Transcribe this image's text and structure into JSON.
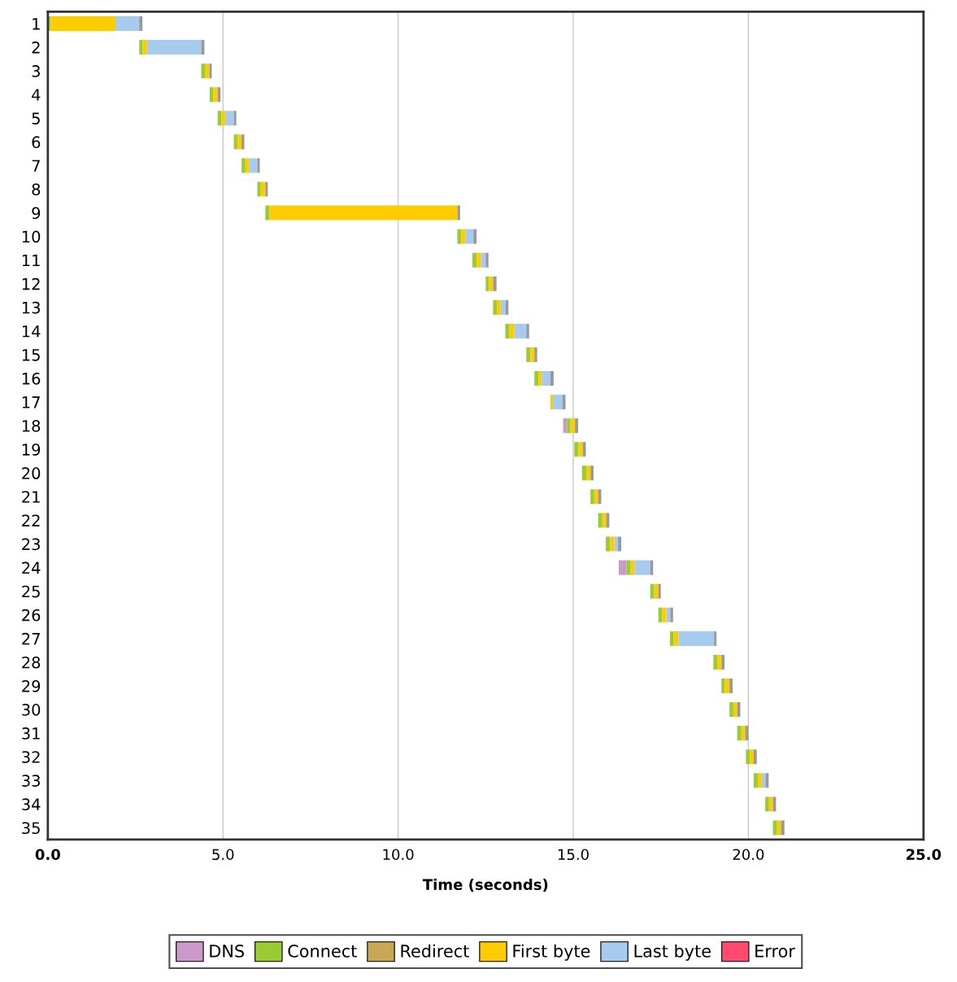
{
  "chart_data": {
    "type": "bar",
    "orientation": "horizontal",
    "xlabel": "Time (seconds)",
    "categories": [
      "1",
      "2",
      "3",
      "4",
      "5",
      "6",
      "7",
      "8",
      "9",
      "10",
      "11",
      "12",
      "13",
      "14",
      "15",
      "16",
      "17",
      "18",
      "19",
      "20",
      "21",
      "22",
      "23",
      "24",
      "25",
      "26",
      "27",
      "28",
      "29",
      "30",
      "31",
      "32",
      "33",
      "34",
      "35"
    ],
    "series": [
      {
        "name": "DNS",
        "color": "#cc99cc",
        "values": [
          null,
          null,
          null,
          null,
          null,
          null,
          null,
          null,
          null,
          null,
          null,
          null,
          null,
          null,
          null,
          null,
          null,
          0.11,
          null,
          null,
          null,
          null,
          null,
          0.22,
          null,
          null,
          null,
          null,
          null,
          null,
          null,
          null,
          null,
          null,
          null
        ],
        "base": [
          null,
          null,
          null,
          null,
          null,
          null,
          null,
          null,
          null,
          null,
          null,
          null,
          null,
          null,
          null,
          null,
          null,
          14.71,
          null,
          null,
          null,
          null,
          null,
          16.3,
          null,
          null,
          null,
          null,
          null,
          null,
          null,
          null,
          null,
          null,
          null
        ]
      },
      {
        "name": "Connect",
        "color": "#99cc33",
        "values": [
          0.08,
          0.09,
          0.12,
          0.11,
          0.11,
          0.1,
          0.11,
          0.1,
          0.12,
          0.11,
          0.12,
          0.09,
          0.11,
          0.12,
          0.12,
          0.12,
          null,
          0.1,
          0.12,
          0.12,
          0.11,
          0.12,
          0.12,
          0.12,
          0.11,
          0.11,
          0.11,
          0.11,
          0.1,
          0.11,
          0.12,
          0.11,
          0.12,
          0.11,
          0.12
        ],
        "base": [
          0.0,
          2.61,
          4.38,
          4.62,
          4.85,
          5.31,
          5.53,
          5.98,
          6.21,
          11.69,
          12.12,
          12.5,
          12.71,
          13.06,
          13.66,
          13.89,
          null,
          14.82,
          15.03,
          15.25,
          15.49,
          15.71,
          15.93,
          16.52,
          17.2,
          17.43,
          17.76,
          19.0,
          19.23,
          19.46,
          19.68,
          19.93,
          20.15,
          20.48,
          20.7
        ]
      },
      {
        "name": "Redirect",
        "color": "#c8a856",
        "values": [
          null,
          null,
          null,
          null,
          null,
          null,
          null,
          null,
          null,
          null,
          null,
          null,
          null,
          null,
          null,
          null,
          null,
          null,
          null,
          null,
          null,
          null,
          null,
          null,
          null,
          null,
          null,
          null,
          null,
          null,
          null,
          null,
          null,
          null,
          null
        ]
      },
      {
        "name": "First byte",
        "color": "#ffcc00",
        "values": [
          1.85,
          0.13,
          0.11,
          0.12,
          0.11,
          0.12,
          0.1,
          0.13,
          5.36,
          0.12,
          0.12,
          0.12,
          0.11,
          0.14,
          0.11,
          0.09,
          0.07,
          0.13,
          0.12,
          0.12,
          0.11,
          0.11,
          0.12,
          0.11,
          0.12,
          0.12,
          0.13,
          0.12,
          0.13,
          0.11,
          0.11,
          0.11,
          0.11,
          0.11,
          0.11
        ],
        "base": [
          0.08,
          2.7,
          4.5,
          4.73,
          4.96,
          5.41,
          5.64,
          6.08,
          6.33,
          11.8,
          12.24,
          12.59,
          12.82,
          13.18,
          13.78,
          14.01,
          14.35,
          14.92,
          15.15,
          15.37,
          15.6,
          15.83,
          16.05,
          16.64,
          17.31,
          17.54,
          17.87,
          19.11,
          19.33,
          19.57,
          19.8,
          20.04,
          20.27,
          20.59,
          20.82
        ]
      },
      {
        "name": "Last byte",
        "color": "#a6cbee",
        "values": [
          0.68,
          1.55,
          null,
          null,
          0.24,
          null,
          0.24,
          null,
          null,
          0.23,
          0.14,
          null,
          0.14,
          0.34,
          null,
          0.25,
          0.27,
          null,
          null,
          null,
          null,
          null,
          0.11,
          0.45,
          null,
          0.11,
          1.02,
          null,
          null,
          null,
          null,
          null,
          0.11,
          null,
          null
        ],
        "base": [
          1.93,
          2.83,
          null,
          null,
          5.07,
          null,
          5.74,
          null,
          null,
          11.92,
          12.36,
          null,
          12.93,
          13.32,
          null,
          14.1,
          14.42,
          null,
          null,
          null,
          null,
          null,
          16.17,
          16.75,
          null,
          17.66,
          18.0,
          null,
          null,
          null,
          null,
          null,
          20.38,
          null,
          null
        ]
      },
      {
        "name": "Error",
        "color": "#ff4a6e",
        "values": [
          null,
          null,
          null,
          null,
          null,
          null,
          null,
          null,
          null,
          null,
          null,
          null,
          null,
          null,
          null,
          null,
          null,
          null,
          null,
          null,
          null,
          null,
          null,
          null,
          null,
          null,
          null,
          null,
          null,
          null,
          null,
          null,
          null,
          null,
          null
        ]
      },
      {
        "color": "#999999",
        "values": [
          0.09,
          0.09,
          0.07,
          0.08,
          0.07,
          0.08,
          0.07,
          0.07,
          0.08,
          0.09,
          0.08,
          0.1,
          0.08,
          0.08,
          0.08,
          0.09,
          0.09,
          0.09,
          0.09,
          0.09,
          0.09,
          0.09,
          0.09,
          0.08,
          0.07,
          0.08,
          0.07,
          0.09,
          0.09,
          0.09,
          0.09,
          0.09,
          0.09,
          0.09,
          0.1
        ],
        "base": [
          2.61,
          4.38,
          4.61,
          4.85,
          5.31,
          5.53,
          5.98,
          6.21,
          11.69,
          12.15,
          12.5,
          12.71,
          13.07,
          13.66,
          13.89,
          14.35,
          14.69,
          15.05,
          15.27,
          15.49,
          15.71,
          15.94,
          16.28,
          17.2,
          17.43,
          17.77,
          19.02,
          19.23,
          19.46,
          19.68,
          19.91,
          20.15,
          20.49,
          20.7,
          20.93
        ]
      }
    ],
    "xlim": [
      0,
      25
    ],
    "xticks": [
      {
        "value": 0,
        "label": "0.0"
      },
      {
        "value": 5,
        "label": "5.0"
      },
      {
        "value": 10,
        "label": "10.0"
      },
      {
        "value": 15,
        "label": "15.0"
      },
      {
        "value": 20,
        "label": "20.0"
      },
      {
        "value": 25,
        "label": "25.0"
      }
    ],
    "grid": "x",
    "legend": "bottom"
  }
}
